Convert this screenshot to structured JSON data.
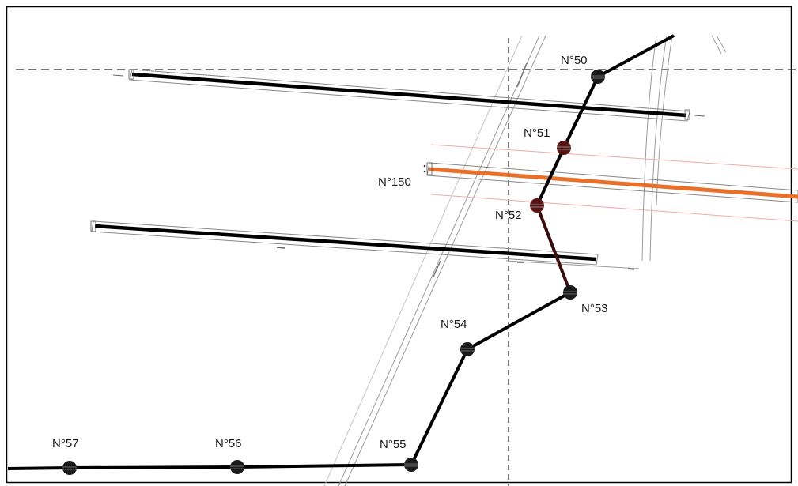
{
  "diagram": {
    "colors": {
      "background": "#ffffff",
      "border": "#000000",
      "conductor": "#000000",
      "highlight_segment": "#3a0c0c",
      "pole_normal": "#1a1a1a",
      "pole_highlight": "#5a1414",
      "orange_line": "#e8702a",
      "pink_line": "#f0a8a8",
      "grey_line": "#8a8a8a"
    },
    "poles": [
      {
        "id": "n50",
        "label": "N°50",
        "highlight": false
      },
      {
        "id": "n51",
        "label": "N°51",
        "highlight": true
      },
      {
        "id": "n52",
        "label": "N°52",
        "highlight": true
      },
      {
        "id": "n53",
        "label": "N°53",
        "highlight": false
      },
      {
        "id": "n54",
        "label": "N°54",
        "highlight": false
      },
      {
        "id": "n55",
        "label": "N°55",
        "highlight": false
      },
      {
        "id": "n56",
        "label": "N°56",
        "highlight": false
      },
      {
        "id": "n57",
        "label": "N°57",
        "highlight": false
      }
    ],
    "crossing_label": "N°150"
  }
}
